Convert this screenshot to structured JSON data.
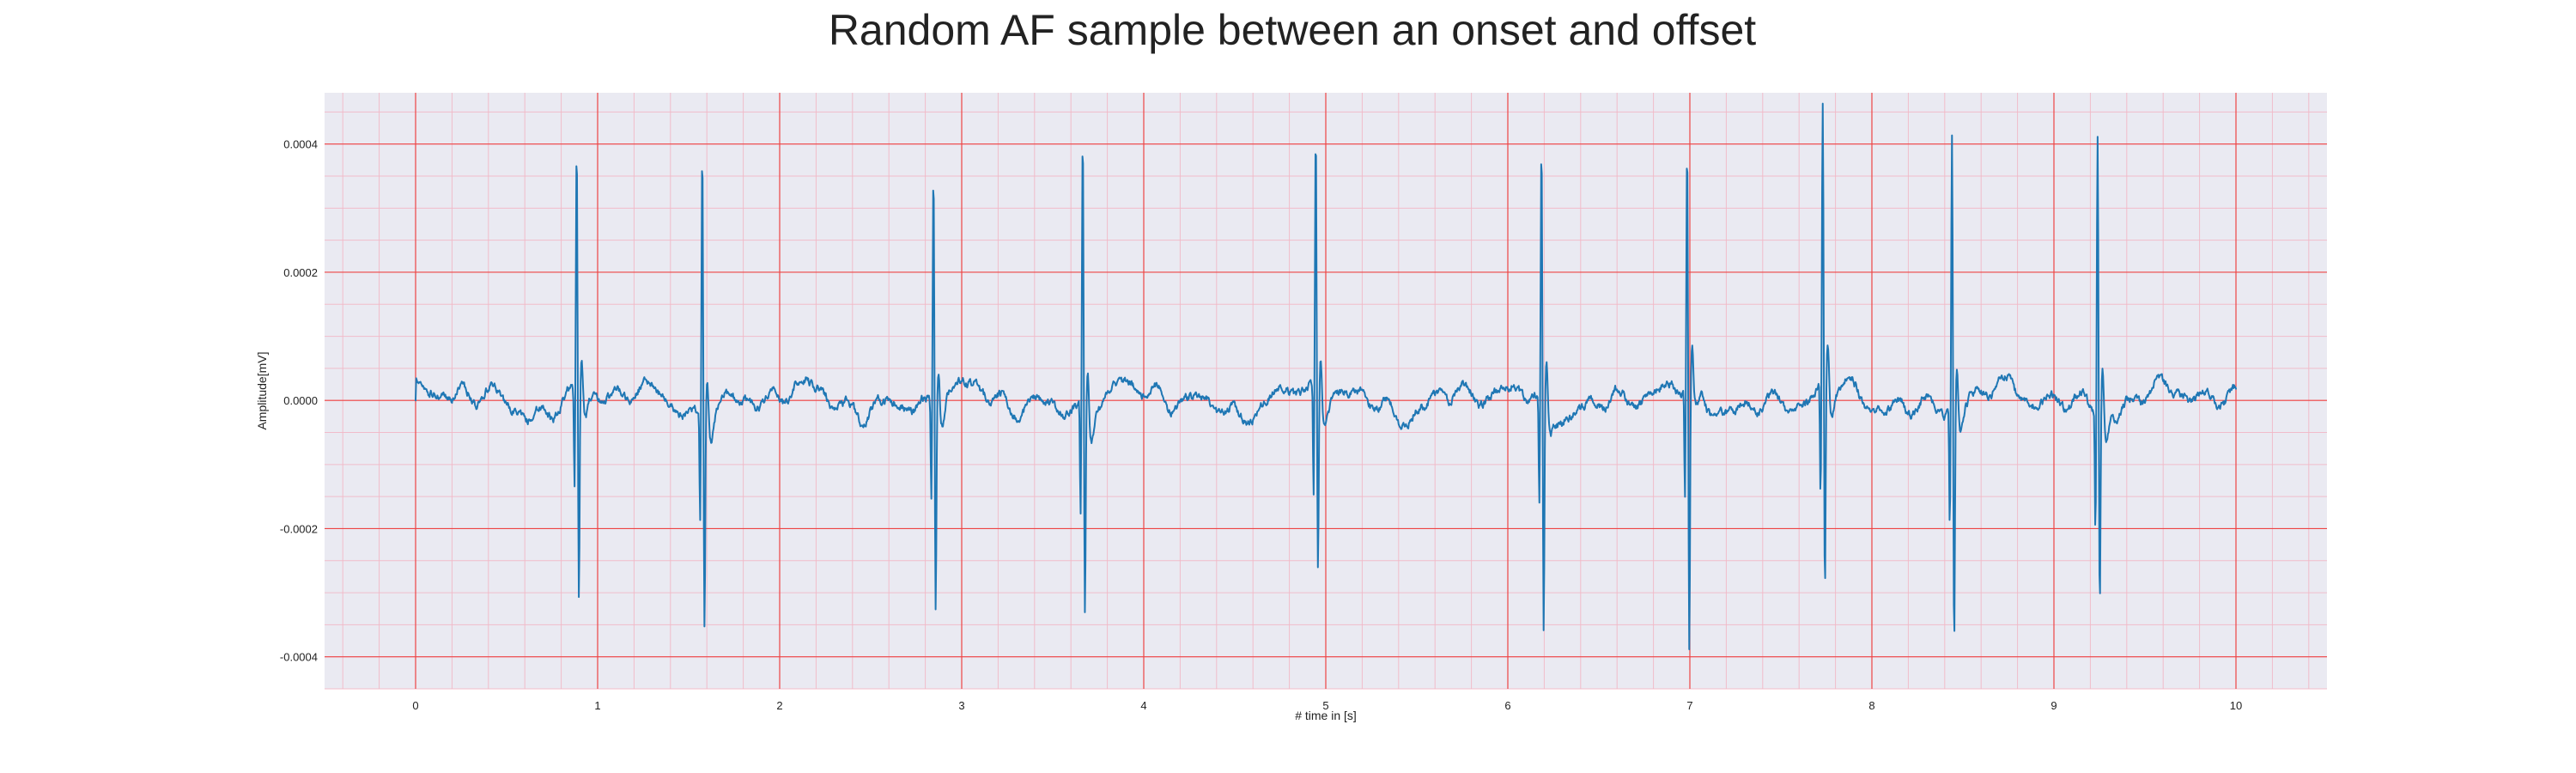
{
  "chart_data": {
    "type": "line",
    "title": "Random AF sample between an onset and offset",
    "xlabel": "# time in [s]",
    "ylabel": "Amplitude[mV]",
    "xlim": [
      -0.5,
      10.5
    ],
    "ylim": [
      -0.00045,
      0.00048
    ],
    "xticks": [
      0,
      1,
      2,
      3,
      4,
      5,
      6,
      7,
      8,
      9,
      10
    ],
    "yticks": [
      -0.0004,
      -0.0002,
      0.0,
      0.0002,
      0.0004
    ],
    "ytick_labels": [
      "-0.0004",
      "-0.0002",
      "0.0000",
      "0.0002",
      "0.0004"
    ],
    "grid": {
      "major": true,
      "minor": true,
      "major_color": "#ee4444",
      "minor_color": "#f2b8c6"
    },
    "colors": {
      "plot_background": "#eaeaf2",
      "line": "#1f77b4"
    },
    "sample_rate_hz": 300,
    "duration_s": 10,
    "series": [
      {
        "peaks": [
          {
            "t": 0.885,
            "high": 0.00038,
            "low": -0.00033
          },
          {
            "t": 1.575,
            "high": 0.000415,
            "low": -0.000335
          },
          {
            "t": 2.845,
            "high": 0.00037,
            "low": -0.00032
          },
          {
            "t": 3.665,
            "high": 0.000428,
            "low": -0.00032
          },
          {
            "t": 4.945,
            "high": 0.00041,
            "low": -0.00028
          },
          {
            "t": 6.185,
            "high": 0.000395,
            "low": -0.00037
          },
          {
            "t": 6.985,
            "high": 0.000385,
            "low": -0.000415
          },
          {
            "t": 7.73,
            "high": 0.00044,
            "low": -0.00033
          },
          {
            "t": 8.44,
            "high": 0.000433,
            "low": -0.00037
          },
          {
            "t": 9.24,
            "high": 0.00044,
            "low": -0.0003
          }
        ]
      }
    ]
  }
}
